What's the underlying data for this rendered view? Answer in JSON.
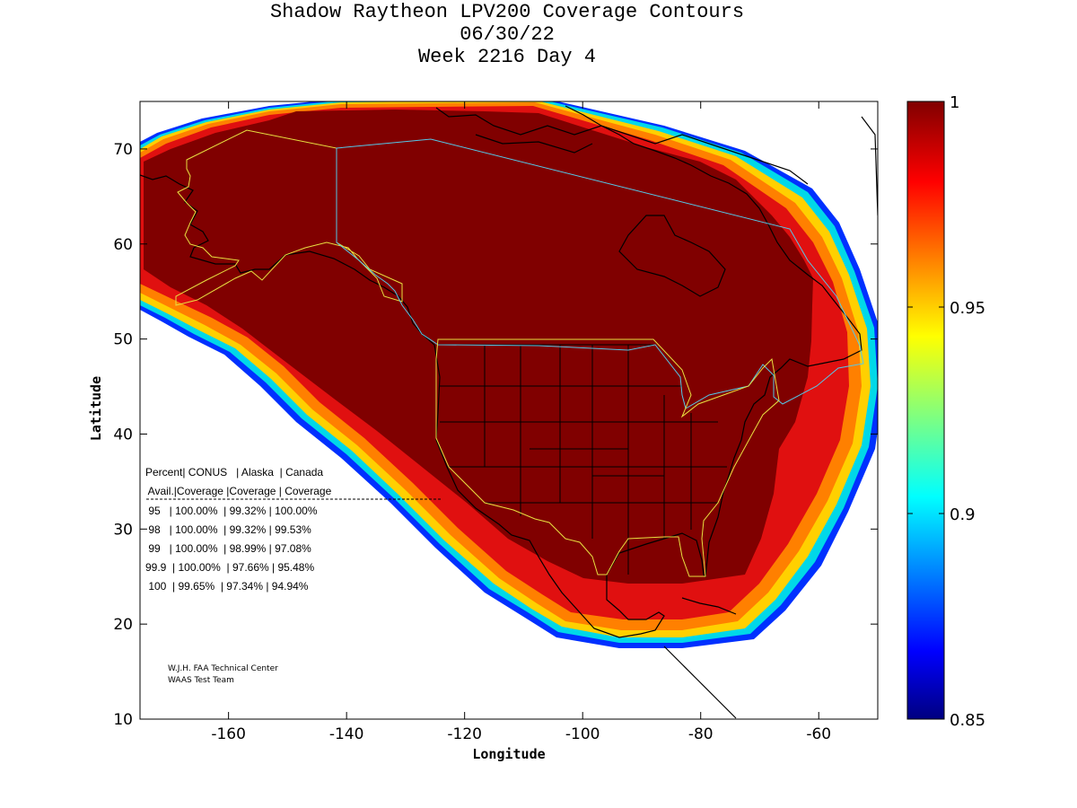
{
  "title": {
    "line1": "Shadow Raytheon LPV200 Coverage Contours",
    "line2": "06/30/22",
    "line3": "Week 2216 Day 4"
  },
  "axes": {
    "xlabel": "Longitude",
    "ylabel": "Latitude",
    "x_ticks": [
      "-160",
      "-140",
      "-120",
      "-100",
      "-80",
      "-60"
    ],
    "y_ticks": [
      "70",
      "60",
      "50",
      "40",
      "30",
      "20",
      "10"
    ],
    "xlim": [
      -175,
      -50
    ],
    "ylim": [
      10,
      75
    ]
  },
  "colorbar": {
    "labels": [
      "1",
      "0.95",
      "0.9",
      "0.85"
    ],
    "range": [
      0.85,
      1.0
    ],
    "colormap": "jet"
  },
  "table": {
    "header1": "Percent| CONUS   | Alaska  | Canada",
    "header2": " Avail.|Coverage |Coverage | Coverage",
    "rows": [
      " 95   | 100.00%  | 99.32% | 100.00%",
      " 98   | 100.00%  | 99.32% | 99.53%",
      " 99   | 100.00%  | 98.99% | 97.08%",
      "99.9  | 100.00%  | 97.66% | 95.48%",
      " 100  | 99.65%  | 97.34% | 94.94%"
    ]
  },
  "credit": {
    "line1": "W.J.H. FAA Technical Center",
    "line2": "WAAS Test Team"
  },
  "colors": {
    "full": "#800000",
    "red": "#e01010",
    "orange": "#ff8000",
    "yellow": "#ffd000",
    "cyan": "#00d8e8",
    "blue": "#0030ff",
    "alaska_canada_border": "#55c8e8",
    "service_area": "#e8e040"
  },
  "chart_data": {
    "type": "heatmap",
    "title": "Shadow Raytheon LPV200 Coverage Contours",
    "xlabel": "Longitude",
    "ylabel": "Latitude",
    "xlim": [
      -175,
      -50
    ],
    "ylim": [
      10,
      75
    ],
    "value_range": [
      0.85,
      1.0
    ],
    "coverage_table": {
      "columns": [
        "Percent Avail.",
        "CONUS Coverage",
        "Alaska Coverage",
        "Canada Coverage"
      ],
      "rows": [
        [
          "95",
          "100.00%",
          "99.32%",
          "100.00%"
        ],
        [
          "98",
          "100.00%",
          "99.32%",
          "99.53%"
        ],
        [
          "99",
          "100.00%",
          "98.99%",
          "97.08%"
        ],
        [
          "99.9",
          "100.00%",
          "97.66%",
          "95.48%"
        ],
        [
          "100",
          "99.65%",
          "97.34%",
          "94.94%"
        ]
      ]
    }
  }
}
